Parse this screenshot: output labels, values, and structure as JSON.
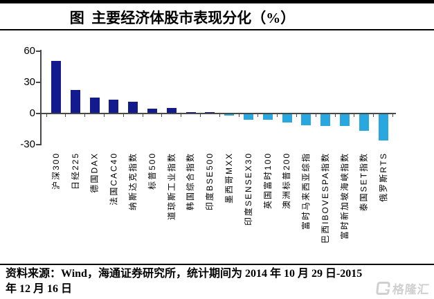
{
  "title": "图  主要经济体股市表现分化（%）",
  "chart_data": {
    "type": "bar",
    "title": "图 主要经济体股市表现分化（%）",
    "unit": "%",
    "categories": [
      "沪深300",
      "日经225",
      "德国DAX",
      "法国CAC40",
      "纳斯达克指数",
      "标普500",
      "道琼斯工业指数",
      "韩国综合指数",
      "印度BSE500",
      "墨西哥MXX",
      "印度SENSEX30",
      "英国富时100",
      "澳洲标普200",
      "富时马来西亚综指",
      "巴西IBOVESPA指数",
      "富时新加坡海峡指数",
      "泰国SET指数",
      "俄罗斯RTS"
    ],
    "values": [
      50,
      22,
      15,
      12.5,
      11,
      4,
      4.5,
      0.5,
      0.3,
      -2,
      -6.5,
      -6,
      -9,
      -11.5,
      -12,
      -12.5,
      -17,
      -26
    ],
    "ylim": [
      -30,
      60
    ],
    "yticks": [
      60,
      30,
      0,
      -30
    ],
    "xlabel": "",
    "ylabel": "",
    "grid": false,
    "legend": false,
    "colors": {
      "positive_bar": "#121a8d",
      "negative_bar": "#29a7df",
      "axis": "#474747"
    }
  },
  "footer": {
    "line1": "资料来源：Wind，海通证券研究所，统计期间为 2014 年 10 月 29 日-2015",
    "line2": "年 12 月 16 日"
  },
  "watermark": {
    "text": "格隆汇"
  }
}
